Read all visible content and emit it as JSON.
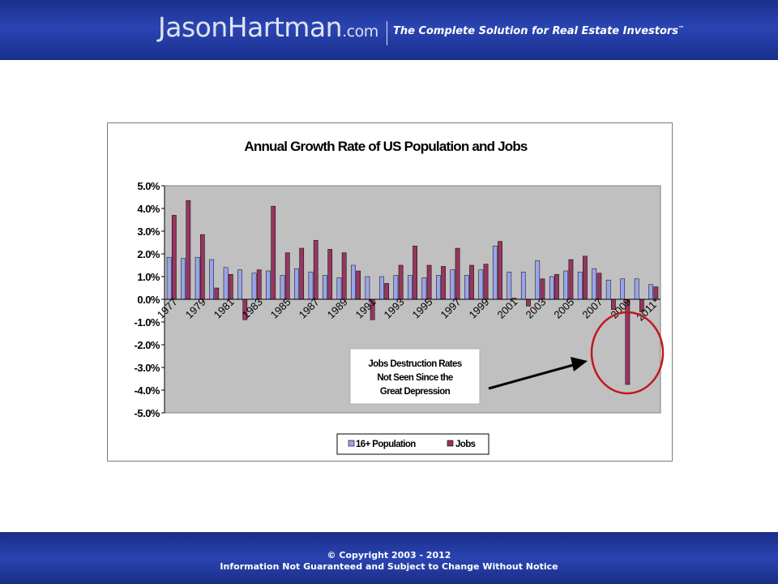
{
  "header": {
    "logo_name": "JasonHartman",
    "logo_domain": ".com",
    "tagline": "The Complete Solution for Real Estate Investors",
    "tagline_mark": "™"
  },
  "footer": {
    "copyright": "© Copyright 2003 - 2012",
    "notice": "Information Not Guaranteed and Subject to Change Without Notice"
  },
  "annotation": {
    "lines": [
      "Jobs Destruction Rates",
      "Not Seen Since the",
      "Great Depression"
    ]
  },
  "colors": {
    "population": "#9aa4ec",
    "jobs": "#95365f",
    "plot_bg": "#c0c0c0",
    "highlight": "#c0181f"
  },
  "chart_data": {
    "type": "bar",
    "title": "Annual Growth Rate of US Population and Jobs",
    "categories": [
      "1977",
      "1978",
      "1979",
      "1980",
      "1981",
      "1982",
      "1983",
      "1984",
      "1985",
      "1986",
      "1987",
      "1988",
      "1989",
      "1990",
      "1991",
      "1992",
      "1993",
      "1994",
      "1995",
      "1996",
      "1997",
      "1998",
      "1999",
      "2000",
      "2001",
      "2002",
      "2003",
      "2004",
      "2005",
      "2006",
      "2007",
      "2008",
      "2009",
      "2010",
      "2011*"
    ],
    "tick_labels": [
      "1977",
      "1979",
      "1981",
      "1983",
      "1985",
      "1987",
      "1989",
      "1991",
      "1993",
      "1995",
      "1997",
      "1999",
      "2001",
      "2003",
      "2005",
      "2007",
      "2009",
      "2011*"
    ],
    "y_ticks": [
      "5.0%",
      "4.0%",
      "3.0%",
      "2.0%",
      "1.0%",
      "0.0%",
      "-1.0%",
      "-2.0%",
      "-3.0%",
      "-4.0%",
      "-5.0%"
    ],
    "ylim": [
      -5,
      5
    ],
    "legend_position": "bottom",
    "grid": false,
    "series": [
      {
        "name": "16+ Population",
        "values": [
          1.85,
          1.8,
          1.85,
          1.75,
          1.4,
          1.3,
          1.15,
          1.25,
          1.05,
          1.35,
          1.2,
          1.05,
          0.95,
          1.5,
          1.0,
          1.0,
          1.05,
          1.05,
          0.95,
          1.05,
          1.3,
          1.05,
          1.3,
          2.35,
          1.2,
          1.2,
          1.7,
          1.0,
          1.25,
          1.2,
          1.35,
          0.85,
          0.9,
          0.9,
          0.65
        ]
      },
      {
        "name": "Jobs",
        "values": [
          3.7,
          4.35,
          2.85,
          0.5,
          1.1,
          -0.9,
          1.3,
          4.1,
          2.05,
          2.25,
          2.6,
          2.2,
          2.05,
          1.25,
          -0.9,
          0.7,
          1.5,
          2.35,
          1.5,
          1.45,
          2.25,
          1.5,
          1.55,
          2.55,
          0.05,
          -0.3,
          0.9,
          1.1,
          1.75,
          1.9,
          1.15,
          -0.45,
          -3.75,
          -0.55,
          0.55
        ]
      }
    ]
  }
}
